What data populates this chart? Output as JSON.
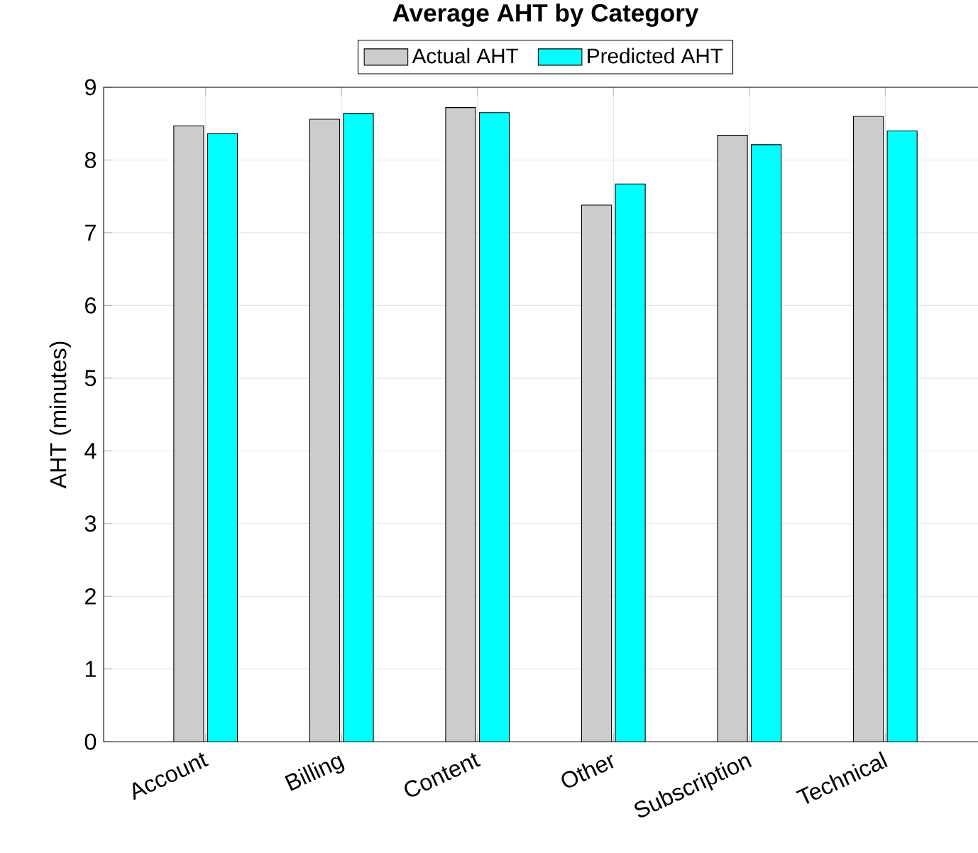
{
  "chart_data": {
    "type": "bar",
    "title": "Average AHT by Category",
    "ylabel": "AHT (minutes)",
    "categories": [
      "Account",
      "Billing",
      "Content",
      "Other",
      "Subscription",
      "Technical"
    ],
    "series": [
      {
        "name": "Actual AHT",
        "color": "#cccccc",
        "values": [
          8.47,
          8.56,
          8.72,
          7.38,
          8.34,
          8.6
        ]
      },
      {
        "name": "Predicted AHT",
        "color": "#00ffff",
        "values": [
          8.36,
          8.64,
          8.65,
          7.67,
          8.21,
          8.4
        ]
      }
    ],
    "ylim": [
      0,
      9
    ],
    "yticks": [
      0,
      1,
      2,
      3,
      4,
      5,
      6,
      7,
      8,
      9
    ],
    "grid": true,
    "legend": "top"
  }
}
